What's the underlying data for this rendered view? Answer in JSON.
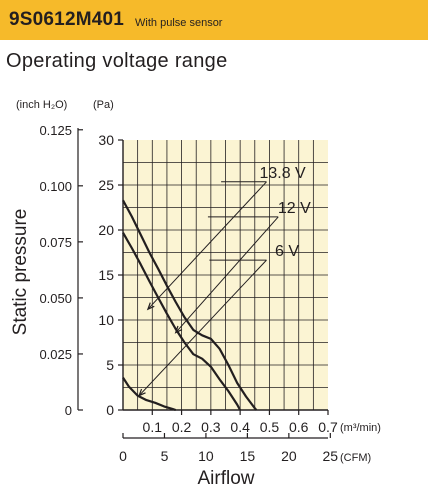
{
  "header": {
    "model": "9S0612M401",
    "subtitle": "With pulse sensor",
    "accent_color": "#f6ba2a"
  },
  "section_title": "Operating voltage range",
  "chart_data": {
    "type": "line",
    "ylabel": "Static pressure",
    "xlabel": "Airflow",
    "y_unit_inch": "(inch H₂O)",
    "y_unit_pa": "(Pa)",
    "x_unit_m3": "(m³/min)",
    "x_unit_cfm": "(CFM)",
    "xlim": [
      0,
      0.7
    ],
    "ylim": [
      0,
      30
    ],
    "x_ticks_m3": [
      "0.1",
      "0.2",
      "0.3",
      "0.4",
      "0.5",
      "0.6",
      "0.7"
    ],
    "x_ticks_cfm": [
      "0",
      "5",
      "10",
      "15",
      "20",
      "25"
    ],
    "y_ticks_pa": [
      "0",
      "5",
      "10",
      "15",
      "20",
      "25",
      "30"
    ],
    "y_ticks_inch": [
      "0",
      "0.025",
      "0.050",
      "0.075",
      "0.100",
      "0.125"
    ],
    "grid": true,
    "series": [
      {
        "name": "13.8 V",
        "x": [
          0,
          0.03,
          0.06,
          0.09,
          0.12,
          0.15,
          0.18,
          0.21,
          0.24,
          0.27,
          0.3,
          0.33,
          0.36,
          0.39,
          0.42,
          0.45,
          0.455
        ],
        "y": [
          23.3,
          21.5,
          19.5,
          17.5,
          15.7,
          13.8,
          12.0,
          10.3,
          8.9,
          8.3,
          7.9,
          6.8,
          5.0,
          3.0,
          1.5,
          0.2,
          0
        ]
      },
      {
        "name": "12 V",
        "x": [
          0,
          0.03,
          0.06,
          0.09,
          0.12,
          0.15,
          0.18,
          0.21,
          0.24,
          0.27,
          0.3,
          0.33,
          0.36,
          0.39,
          0.4
        ],
        "y": [
          19.7,
          18.0,
          16.2,
          14.3,
          12.5,
          10.7,
          9.0,
          7.5,
          6.2,
          5.7,
          4.8,
          3.4,
          2.1,
          0.6,
          0
        ]
      },
      {
        "name": "6 V",
        "x": [
          0,
          0.02,
          0.05,
          0.08,
          0.11,
          0.14,
          0.17,
          0.18
        ],
        "y": [
          3.6,
          2.6,
          1.6,
          1.1,
          0.8,
          0.4,
          0.1,
          0
        ]
      }
    ]
  }
}
